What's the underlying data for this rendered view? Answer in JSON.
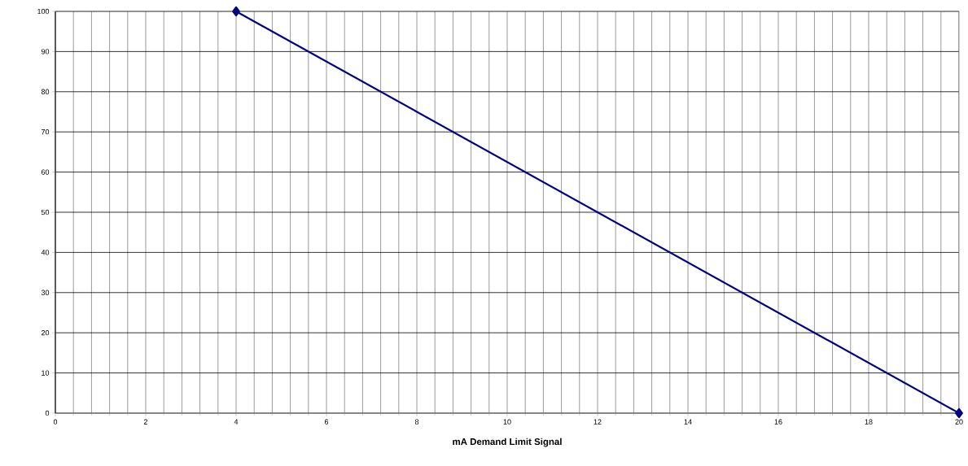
{
  "chart_data": {
    "type": "line",
    "xlabel": "mA Demand Limit Signal",
    "x": [
      4,
      20
    ],
    "series": [
      {
        "color": "#000080",
        "values": [
          100,
          0
        ]
      }
    ],
    "xlim": [
      0,
      20
    ],
    "xticks": [
      0,
      2,
      4,
      6,
      8,
      10,
      12,
      14,
      16,
      18,
      20
    ],
    "ylim": [
      0,
      100
    ],
    "yticks": [
      0,
      10,
      20,
      30,
      40,
      50,
      60,
      70,
      80,
      90,
      100
    ],
    "grid": true,
    "marker": "diamond",
    "line_style": "solid"
  }
}
